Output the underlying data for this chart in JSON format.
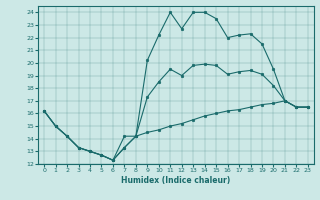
{
  "title": "",
  "xlabel": "Humidex (Indice chaleur)",
  "xlim": [
    -0.5,
    23.5
  ],
  "ylim": [
    12,
    24.5
  ],
  "yticks": [
    12,
    13,
    14,
    15,
    16,
    17,
    18,
    19,
    20,
    21,
    22,
    23,
    24
  ],
  "xticks": [
    0,
    1,
    2,
    3,
    4,
    5,
    6,
    7,
    8,
    9,
    10,
    11,
    12,
    13,
    14,
    15,
    16,
    17,
    18,
    19,
    20,
    21,
    22,
    23
  ],
  "background_color": "#cce8e6",
  "line_color": "#1a6b6b",
  "line1_y": [
    16.2,
    15.0,
    14.2,
    13.3,
    13.0,
    12.7,
    12.3,
    14.2,
    14.2,
    20.2,
    22.2,
    24.0,
    22.7,
    24.0,
    24.0,
    23.5,
    22.0,
    22.2,
    22.3,
    21.5,
    19.5,
    17.0,
    16.5,
    16.5
  ],
  "line2_y": [
    16.2,
    15.0,
    14.2,
    13.3,
    13.0,
    12.7,
    12.3,
    13.3,
    14.2,
    14.5,
    14.7,
    15.0,
    15.2,
    15.5,
    15.8,
    16.0,
    16.2,
    16.3,
    16.5,
    16.7,
    16.8,
    17.0,
    16.5,
    16.5
  ],
  "line3_y": [
    16.2,
    15.0,
    14.2,
    13.3,
    13.0,
    12.7,
    12.3,
    13.3,
    14.2,
    17.3,
    18.5,
    19.5,
    19.0,
    19.8,
    19.9,
    19.8,
    19.1,
    19.3,
    19.4,
    19.1,
    18.2,
    17.0,
    16.5,
    16.5
  ]
}
